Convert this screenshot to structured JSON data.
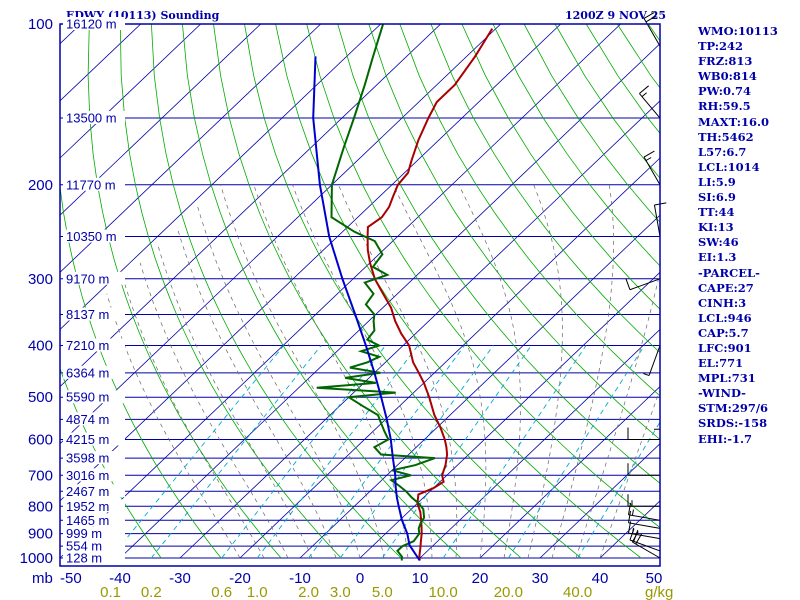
{
  "header": {
    "station": "EDWY (10113) Sounding",
    "datetime": "1200Z  9 NOV 25"
  },
  "indices": [
    "WMO:10113",
    "TP:242",
    "FRZ:813",
    "WB0:814",
    "PW:0.74",
    "RH:59.5",
    "MAXT:16.0",
    "TH:5462",
    "L57:6.7",
    "LCL:1014",
    "LI:5.9",
    "SI:6.9",
    "TT:44",
    "KI:13",
    "SW:46",
    "EI:1.3",
    "-PARCEL-",
    "CAPE:27",
    "CINH:3",
    "LCL:946",
    "CAP:5.7",
    "LFC:901",
    "EL:771",
    "MPL:731",
    "-WIND-",
    "STM:297/6",
    "SRDS:-158",
    "EHI:-1.7"
  ],
  "colors": {
    "frame": "#0000aa",
    "isobar": "#0000aa",
    "isotherm": "#0000aa",
    "dry_adiabat": "#00aa00",
    "moist_adiabat": "#666666",
    "mixing_ratio": "#00aacc",
    "temperature": "#aa0000",
    "dewpoint": "#006600",
    "parcel": "#0000cc",
    "wind": "#000000",
    "mixing_label": "#999900"
  },
  "chart_data": {
    "type": "line",
    "ylabel": "mb",
    "xlabel": "",
    "xlim": [
      -50,
      50
    ],
    "ylim": [
      1000,
      100
    ],
    "y_scale": "log",
    "pressure_labels": [
      {
        "p": 100,
        "label": "100"
      },
      {
        "p": 200,
        "label": "200"
      },
      {
        "p": 300,
        "label": "300"
      },
      {
        "p": 400,
        "label": "400"
      },
      {
        "p": 500,
        "label": "500"
      },
      {
        "p": 600,
        "label": "600"
      },
      {
        "p": 700,
        "label": "700"
      },
      {
        "p": 800,
        "label": "800"
      },
      {
        "p": 900,
        "label": "900"
      },
      {
        "p": 1000,
        "label": "1000"
      }
    ],
    "height_labels": [
      {
        "p": 100,
        "label": "16120 m"
      },
      {
        "p": 150,
        "label": "13500 m"
      },
      {
        "p": 200,
        "label": "11770 m"
      },
      {
        "p": 250,
        "label": "10350 m"
      },
      {
        "p": 300,
        "label": "9170 m"
      },
      {
        "p": 350,
        "label": "8137 m"
      },
      {
        "p": 400,
        "label": "7210 m"
      },
      {
        "p": 450,
        "label": "6364 m"
      },
      {
        "p": 500,
        "label": "5590 m"
      },
      {
        "p": 550,
        "label": "4874 m"
      },
      {
        "p": 600,
        "label": "4215 m"
      },
      {
        "p": 650,
        "label": "3598 m"
      },
      {
        "p": 700,
        "label": "3016 m"
      },
      {
        "p": 750,
        "label": "2467 m"
      },
      {
        "p": 800,
        "label": "1952 m"
      },
      {
        "p": 850,
        "label": "1465 m"
      },
      {
        "p": 900,
        "label": "999 m"
      },
      {
        "p": 950,
        "label": "554 m"
      },
      {
        "p": 1000,
        "label": "128 m"
      }
    ],
    "temperature_ticks": [
      {
        "t": -50,
        "label": "-50"
      },
      {
        "t": -40,
        "label": "-40"
      },
      {
        "t": -30,
        "label": "-30"
      },
      {
        "t": -20,
        "label": "-20"
      },
      {
        "t": -10,
        "label": "-10"
      },
      {
        "t": 0,
        "label": "0"
      },
      {
        "t": 10,
        "label": "10"
      },
      {
        "t": 20,
        "label": "20"
      },
      {
        "t": 30,
        "label": "30"
      },
      {
        "t": 40,
        "label": "40"
      },
      {
        "t": 50,
        "label": "50"
      }
    ],
    "mixing_ratio_labels": [
      {
        "w": 0.1,
        "label": "0.1"
      },
      {
        "w": 0.2,
        "label": "0.2"
      },
      {
        "w": 0.6,
        "label": "0.6"
      },
      {
        "w": 1.0,
        "label": "1.0"
      },
      {
        "w": 2.0,
        "label": "2.0"
      },
      {
        "w": 3.0,
        "label": "3.0"
      },
      {
        "w": 5.0,
        "label": "5.0"
      },
      {
        "w": 10.0,
        "label": "10.0"
      },
      {
        "w": 20.0,
        "label": "20.0"
      },
      {
        "w": 40.0,
        "label": "40.0"
      }
    ],
    "mixing_ratio_unit": "g/kg",
    "series": [
      {
        "key": "temperature",
        "points": [
          [
            1011,
            10.4
          ],
          [
            990,
            9.5
          ],
          [
            960,
            8.4
          ],
          [
            930,
            7.2
          ],
          [
            900,
            6.0
          ],
          [
            870,
            4.6
          ],
          [
            850,
            3.6
          ],
          [
            820,
            2.0
          ],
          [
            790,
            0.0
          ],
          [
            760,
            -1.4
          ],
          [
            740,
            0.0
          ],
          [
            720,
            0.6
          ],
          [
            700,
            -0.8
          ],
          [
            670,
            -2.0
          ],
          [
            640,
            -3.6
          ],
          [
            620,
            -5.0
          ],
          [
            600,
            -6.6
          ],
          [
            570,
            -9.4
          ],
          [
            540,
            -12.6
          ],
          [
            500,
            -16.6
          ],
          [
            470,
            -20.0
          ],
          [
            450,
            -22.6
          ],
          [
            430,
            -25.4
          ],
          [
            400,
            -29.0
          ],
          [
            380,
            -32.4
          ],
          [
            360,
            -35.6
          ],
          [
            340,
            -38.6
          ],
          [
            320,
            -42.4
          ],
          [
            300,
            -46.4
          ],
          [
            280,
            -50.0
          ],
          [
            265,
            -52.6
          ],
          [
            250,
            -55.0
          ],
          [
            240,
            -56.6
          ],
          [
            230,
            -56.0
          ],
          [
            220,
            -56.6
          ],
          [
            210,
            -57.8
          ],
          [
            200,
            -59.0
          ],
          [
            190,
            -59.4
          ],
          [
            180,
            -61.0
          ],
          [
            165,
            -63.4
          ],
          [
            150,
            -65.6
          ],
          [
            140,
            -67.0
          ],
          [
            130,
            -67.0
          ],
          [
            115,
            -68.6
          ],
          [
            102,
            -70.6
          ]
        ]
      },
      {
        "key": "dewpoint",
        "points": [
          [
            1011,
            7.4
          ],
          [
            995,
            6.8
          ],
          [
            970,
            5.0
          ],
          [
            950,
            5.0
          ],
          [
            930,
            6.0
          ],
          [
            900,
            5.6
          ],
          [
            880,
            4.6
          ],
          [
            860,
            4.0
          ],
          [
            840,
            3.6
          ],
          [
            810,
            2.0
          ],
          [
            790,
            0.2
          ],
          [
            770,
            -2.0
          ],
          [
            750,
            -4.0
          ],
          [
            730,
            -6.4
          ],
          [
            715,
            -8.4
          ],
          [
            700,
            -6.0
          ],
          [
            685,
            -10.0
          ],
          [
            670,
            -7.0
          ],
          [
            650,
            -5.0
          ],
          [
            640,
            -14.6
          ],
          [
            620,
            -17.0
          ],
          [
            600,
            -16.0
          ],
          [
            580,
            -18.0
          ],
          [
            560,
            -20.0
          ],
          [
            540,
            -22.0
          ],
          [
            520,
            -26.0
          ],
          [
            500,
            -30.0
          ],
          [
            490,
            -23.0
          ],
          [
            480,
            -37.0
          ],
          [
            470,
            -28.0
          ],
          [
            460,
            -34.0
          ],
          [
            450,
            -29.0
          ],
          [
            440,
            -35.0
          ],
          [
            430,
            -33.0
          ],
          [
            420,
            -32.0
          ],
          [
            410,
            -36.0
          ],
          [
            400,
            -34.0
          ],
          [
            390,
            -37.0
          ],
          [
            375,
            -37.4
          ],
          [
            360,
            -39.2
          ],
          [
            350,
            -40.2
          ],
          [
            335,
            -43.4
          ],
          [
            320,
            -44.0
          ],
          [
            305,
            -47.4
          ],
          [
            295,
            -45.0
          ],
          [
            285,
            -48.8
          ],
          [
            270,
            -49.4
          ],
          [
            255,
            -53.0
          ],
          [
            245,
            -58.0
          ],
          [
            230,
            -64.4
          ],
          [
            200,
            -70.0
          ],
          [
            170,
            -74.6
          ],
          [
            150,
            -78.0
          ],
          [
            130,
            -82.0
          ],
          [
            115,
            -85.6
          ],
          [
            100,
            -89.6
          ]
        ]
      },
      {
        "key": "parcel",
        "points": [
          [
            1011,
            10.4
          ],
          [
            946,
            6.0
          ],
          [
            900,
            3.6
          ],
          [
            850,
            0.4
          ],
          [
            800,
            -2.6
          ],
          [
            771,
            -4.4
          ],
          [
            731,
            -6.8
          ],
          [
            700,
            -8.6
          ],
          [
            650,
            -12.0
          ],
          [
            600,
            -15.6
          ],
          [
            550,
            -19.8
          ],
          [
            500,
            -24.6
          ],
          [
            450,
            -30.0
          ],
          [
            400,
            -36.2
          ],
          [
            350,
            -43.4
          ],
          [
            300,
            -51.8
          ],
          [
            250,
            -61.4
          ],
          [
            200,
            -72.0
          ],
          [
            150,
            -84.8
          ],
          [
            115,
            -95.2
          ]
        ]
      }
    ],
    "wind_barbs": [
      {
        "p": 1000,
        "dir": 300,
        "kt": 20
      },
      {
        "p": 970,
        "dir": 290,
        "kt": 20
      },
      {
        "p": 920,
        "dir": 280,
        "kt": 15
      },
      {
        "p": 880,
        "dir": 280,
        "kt": 10
      },
      {
        "p": 850,
        "dir": 280,
        "kt": 15
      },
      {
        "p": 800,
        "dir": 270,
        "kt": 15
      },
      {
        "p": 700,
        "dir": 270,
        "kt": 10
      },
      {
        "p": 600,
        "dir": 270,
        "kt": 10
      },
      {
        "p": 500,
        "dir": 180,
        "kt": 5
      },
      {
        "p": 400,
        "dir": 200,
        "kt": 5
      },
      {
        "p": 300,
        "dir": 250,
        "kt": 10
      },
      {
        "p": 250,
        "dir": 350,
        "kt": 10
      },
      {
        "p": 200,
        "dir": 330,
        "kt": 15
      },
      {
        "p": 150,
        "dir": 320,
        "kt": 15
      },
      {
        "p": 110,
        "dir": 330,
        "kt": 20
      }
    ]
  }
}
